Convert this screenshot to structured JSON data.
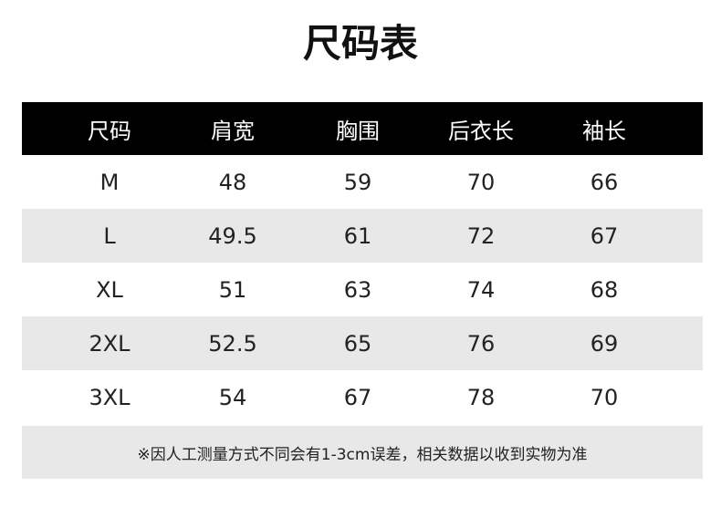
{
  "title": "尺码表",
  "columns": [
    "尺码",
    "肩宽",
    "胸围",
    "后衣长",
    "袖长"
  ],
  "rows": [
    [
      "M",
      "48",
      "59",
      "70",
      "66"
    ],
    [
      "L",
      "49.5",
      "61",
      "72",
      "67"
    ],
    [
      "XL",
      "51",
      "63",
      "74",
      "68"
    ],
    [
      "2XL",
      "52.5",
      "65",
      "76",
      "69"
    ],
    [
      "3XL",
      "54",
      "67",
      "78",
      "70"
    ]
  ],
  "note": "※因人工测量方式不同会有1-3cm误差，相关数据以收到实物为准",
  "colors": {
    "header_bg": "#000000",
    "stripe": "#e8e8e8"
  }
}
